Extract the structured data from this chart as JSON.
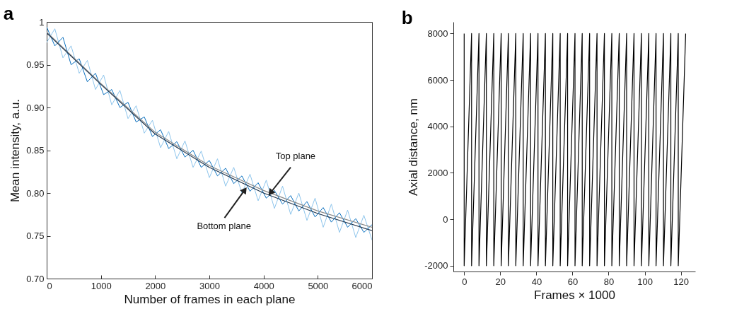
{
  "chart_data": [
    {
      "type": "line",
      "title": "a",
      "xlabel": "Number of frames in each plane",
      "ylabel": "Mean intensity, a.u.",
      "x": [
        0,
        150,
        300,
        450,
        600,
        750,
        900,
        1050,
        1200,
        1350,
        1500,
        1650,
        1800,
        1950,
        2100,
        2250,
        2400,
        2550,
        2700,
        2850,
        3000,
        3150,
        3300,
        3450,
        3600,
        3750,
        3900,
        4050,
        4200,
        4350,
        4500,
        4650,
        4800,
        4950,
        5100,
        5250,
        5400,
        5550,
        5700,
        5850,
        6000
      ],
      "series": [
        {
          "color": "#8ec5ec",
          "values": [
            0.976,
            0.992,
            0.958,
            0.972,
            0.94,
            0.955,
            0.921,
            0.938,
            0.903,
            0.92,
            0.887,
            0.902,
            0.87,
            0.885,
            0.853,
            0.872,
            0.84,
            0.861,
            0.83,
            0.849,
            0.818,
            0.84,
            0.808,
            0.83,
            0.8,
            0.822,
            0.791,
            0.815,
            0.782,
            0.808,
            0.775,
            0.8,
            0.768,
            0.794,
            0.76,
            0.787,
            0.754,
            0.78,
            0.748,
            0.774,
            0.745
          ]
        },
        {
          "color": "#0a70bf",
          "values": [
            0.994,
            0.972,
            0.982,
            0.95,
            0.957,
            0.93,
            0.94,
            0.915,
            0.921,
            0.9,
            0.906,
            0.883,
            0.889,
            0.866,
            0.874,
            0.852,
            0.86,
            0.842,
            0.85,
            0.83,
            0.838,
            0.82,
            0.829,
            0.811,
            0.82,
            0.802,
            0.812,
            0.794,
            0.803,
            0.787,
            0.797,
            0.779,
            0.79,
            0.772,
            0.783,
            0.766,
            0.777,
            0.76,
            0.77,
            0.754,
            0.763
          ]
        },
        {
          "color": "#8a8a8a",
          "x": [
            0,
            1000,
            2000,
            3000,
            4000,
            5000,
            6000
          ],
          "values": [
            0.988,
            0.928,
            0.871,
            0.832,
            0.803,
            0.779,
            0.76
          ]
        },
        {
          "color": "#23384f",
          "x": [
            0,
            1000,
            2000,
            3000,
            4000,
            5000,
            6000
          ],
          "values": [
            0.987,
            0.927,
            0.869,
            0.83,
            0.8,
            0.776,
            0.756
          ]
        }
      ],
      "xlim": [
        0,
        6000
      ],
      "xticks": [
        0,
        1000,
        2000,
        3000,
        4000,
        5000,
        6000
      ],
      "ylim": [
        0.7,
        1
      ],
      "yticks": [
        {
          "value": 0.7,
          "label": "0.70"
        },
        0.75,
        {
          "value": 0.8,
          "label": "0.80"
        },
        0.85,
        {
          "value": 0.9,
          "label": "0.90"
        },
        0.95,
        1
      ],
      "annotations": [
        {
          "text": "Top plane",
          "x": 4100,
          "y": 0.798
        },
        {
          "text": "Bottom plane",
          "x": 3680,
          "y": 0.806
        }
      ],
      "grid": false
    },
    {
      "type": "line",
      "title": "b",
      "xlabel": "Frames × 1000",
      "ylabel": "Axial distance, nm",
      "series": [
        {
          "color": "#000000",
          "x": [
            0,
            0,
            4.1,
            4.1,
            8.2,
            8.2,
            12.3,
            12.3,
            16.4,
            16.4,
            20.5,
            20.5,
            24.5,
            24.5,
            28.6,
            28.6,
            32.7,
            32.7,
            36.8,
            36.8,
            40.9,
            40.9,
            45,
            45,
            49.1,
            49.1,
            53.2,
            53.2,
            57.3,
            57.3,
            61.4,
            61.4,
            65.4,
            65.4,
            69.5,
            69.5,
            73.6,
            73.6,
            77.7,
            77.7,
            81.8,
            81.8,
            85.9,
            85.9,
            90,
            90,
            94.1,
            94.1,
            98.2,
            98.2,
            102.3,
            102.3,
            106.3,
            106.3,
            110.4,
            110.4,
            114.5,
            114.5,
            118.6,
            118.6,
            122.7
          ],
          "values": [
            8000,
            -2000,
            8000,
            -2000,
            8000,
            -2000,
            8000,
            -2000,
            8000,
            -2000,
            8000,
            -2000,
            8000,
            -2000,
            8000,
            -2000,
            8000,
            -2000,
            8000,
            -2000,
            8000,
            -2000,
            8000,
            -2000,
            8000,
            -2000,
            8000,
            -2000,
            8000,
            -2000,
            8000,
            -2000,
            8000,
            -2000,
            8000,
            -2000,
            8000,
            -2000,
            8000,
            -2000,
            8000,
            -2000,
            8000,
            -2000,
            8000,
            -2000,
            8000,
            -2000,
            8000,
            -2000,
            8000,
            -2000,
            8000,
            -2000,
            8000,
            -2000,
            8000,
            -2000,
            8000,
            -2000,
            8000
          ]
        }
      ],
      "xlim": [
        -6,
        128
      ],
      "xticks": [
        0,
        20,
        40,
        60,
        80,
        100,
        120
      ],
      "ylim": [
        -2250,
        8500
      ],
      "yticks": [
        -2000,
        0,
        2000,
        4000,
        6000,
        8000
      ],
      "grid": false
    }
  ]
}
